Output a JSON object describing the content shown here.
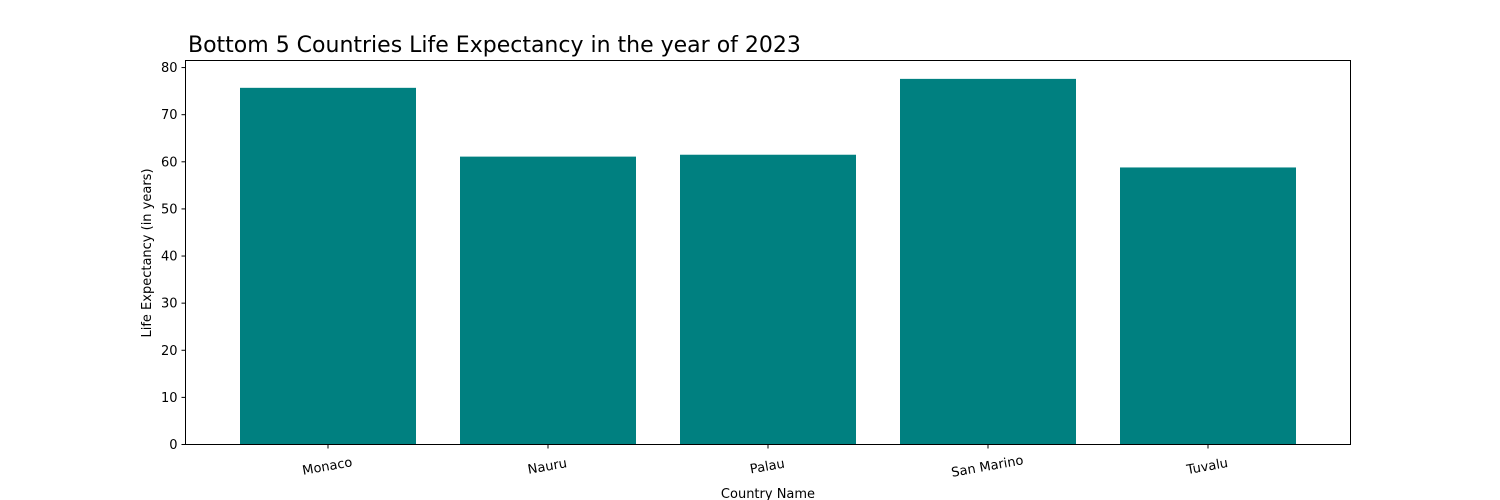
{
  "chart_data": {
    "type": "bar",
    "title": "Bottom 5 Countries Life Expectancy in the year of 2023",
    "xlabel": "Country Name",
    "ylabel": "Life Expectancy (in years)",
    "categories": [
      "Monaco",
      "Nauru",
      "Palau",
      "San Marino",
      "Tuvalu"
    ],
    "values": [
      75.7,
      61.1,
      61.5,
      77.6,
      58.8
    ],
    "ylim": [
      0,
      81.5
    ],
    "yticks": [
      "0",
      "10",
      "20",
      "30",
      "40",
      "50",
      "60",
      "70",
      "80"
    ],
    "bar_color": "#008080",
    "grid": false,
    "x_tick_rotation_deg": -10
  }
}
